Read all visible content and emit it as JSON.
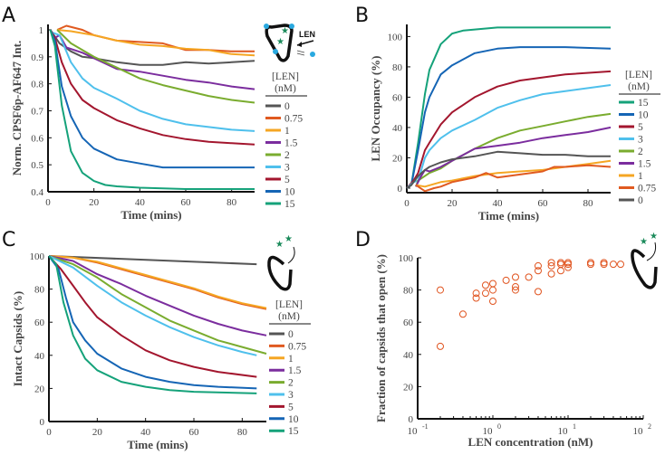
{
  "colors": {
    "0": "#555555",
    "0.75": "#e05a20",
    "1": "#f5a623",
    "1.5": "#7b2d9e",
    "2": "#7aac2f",
    "3": "#4fc0ec",
    "5": "#a3162e",
    "10": "#1565b5",
    "15": "#15a27a",
    "markers": "#e0531e",
    "cartoon_star": "#1a8a5a",
    "cartoon_dot": "#29a9e0"
  },
  "cartoon": {
    "len_label": "LEN"
  },
  "chart_data": [
    {
      "panel": "A",
      "type": "line",
      "xlabel": "Time (mins)",
      "ylabel": "Norm. CPSF6p-AF647 Int.",
      "xlim": [
        0,
        90
      ],
      "ylim": [
        0.4,
        1.02
      ],
      "xticks": [
        0,
        20,
        40,
        60,
        80
      ],
      "yticks": [
        0.4,
        0.5,
        0.6,
        0.7,
        0.8,
        0.9,
        1
      ],
      "ytick_labels": [
        "0.4",
        "0.5",
        "0.6",
        "0.7",
        "0.8",
        "0.9",
        "1"
      ],
      "legend": {
        "title": "[LEN]",
        "unit": "(nM)",
        "position": "right",
        "order": [
          "0",
          "0.75",
          "1",
          "1.5",
          "2",
          "3",
          "5",
          "10",
          "15"
        ]
      },
      "series": [
        {
          "name": "0",
          "x": [
            1,
            5,
            10,
            15,
            20,
            30,
            40,
            50,
            60,
            70,
            80,
            90
          ],
          "y": [
            1,
            0.95,
            0.92,
            0.9,
            0.895,
            0.88,
            0.87,
            0.87,
            0.88,
            0.875,
            0.88,
            0.885
          ]
        },
        {
          "name": "0.75",
          "x": [
            4,
            8,
            15,
            20,
            30,
            40,
            50,
            60,
            70,
            80,
            90
          ],
          "y": [
            1,
            1.015,
            1,
            0.98,
            0.96,
            0.955,
            0.95,
            0.925,
            0.925,
            0.92,
            0.92
          ]
        },
        {
          "name": "1",
          "x": [
            4,
            10,
            20,
            30,
            40,
            50,
            60,
            70,
            80,
            90
          ],
          "y": [
            1,
            0.995,
            0.98,
            0.96,
            0.945,
            0.94,
            0.93,
            0.925,
            0.91,
            0.905
          ]
        },
        {
          "name": "1.5",
          "x": [
            3,
            5,
            8,
            15,
            20,
            30,
            40,
            50,
            60,
            70,
            80,
            90
          ],
          "y": [
            0.97,
            0.98,
            0.935,
            0.915,
            0.895,
            0.855,
            0.845,
            0.83,
            0.815,
            0.805,
            0.79,
            0.78
          ]
        },
        {
          "name": "2",
          "x": [
            4,
            10,
            20,
            30,
            40,
            50,
            60,
            70,
            80,
            90
          ],
          "y": [
            1,
            0.95,
            0.9,
            0.86,
            0.82,
            0.795,
            0.775,
            0.755,
            0.74,
            0.73
          ]
        },
        {
          "name": "3",
          "x": [
            2,
            5,
            10,
            15,
            20,
            30,
            40,
            50,
            60,
            70,
            80,
            90
          ],
          "y": [
            0.99,
            0.98,
            0.88,
            0.82,
            0.785,
            0.745,
            0.7,
            0.67,
            0.65,
            0.64,
            0.63,
            0.625
          ]
        },
        {
          "name": "5",
          "x": [
            1,
            3,
            6,
            10,
            15,
            20,
            30,
            40,
            50,
            60,
            70,
            80,
            90
          ],
          "y": [
            1,
            0.97,
            0.88,
            0.8,
            0.74,
            0.71,
            0.665,
            0.635,
            0.61,
            0.595,
            0.585,
            0.58,
            0.575
          ]
        },
        {
          "name": "10",
          "x": [
            1,
            3,
            6,
            10,
            15,
            20,
            30,
            40,
            50,
            60,
            70,
            80,
            90
          ],
          "y": [
            1,
            0.96,
            0.79,
            0.68,
            0.6,
            0.56,
            0.52,
            0.505,
            0.49,
            0.49,
            0.49,
            0.49,
            0.49
          ]
        },
        {
          "name": "15",
          "x": [
            1,
            3,
            6,
            10,
            15,
            20,
            25,
            30,
            40,
            60,
            90
          ],
          "y": [
            1,
            0.94,
            0.72,
            0.55,
            0.47,
            0.44,
            0.425,
            0.42,
            0.415,
            0.41,
            0.41
          ]
        }
      ]
    },
    {
      "panel": "B",
      "type": "line",
      "xlabel": "Time (mins)",
      "ylabel": "LEN Occupancy (%)",
      "xlim": [
        0,
        90
      ],
      "ylim": [
        -3,
        108
      ],
      "xticks": [
        0,
        20,
        40,
        60,
        80
      ],
      "yticks": [
        0,
        20,
        40,
        60,
        80,
        100
      ],
      "ytick_labels": [
        "0",
        "20",
        "40",
        "60",
        "80",
        "100"
      ],
      "legend": {
        "title": "[LEN]",
        "unit": "(nM)",
        "position": "right",
        "order": [
          "15",
          "10",
          "5",
          "3",
          "2",
          "1.5",
          "1",
          "0.75",
          "0"
        ]
      },
      "series": [
        {
          "name": "15",
          "x": [
            0,
            2,
            5,
            8,
            10,
            15,
            20,
            25,
            40,
            60,
            90
          ],
          "y": [
            0,
            2,
            30,
            62,
            78,
            95,
            102,
            104,
            106,
            106,
            106
          ]
        },
        {
          "name": "10",
          "x": [
            0,
            2,
            5,
            8,
            10,
            15,
            20,
            30,
            40,
            50,
            70,
            90
          ],
          "y": [
            0,
            2,
            25,
            50,
            60,
            75,
            81,
            89,
            92,
            93,
            93,
            92
          ]
        },
        {
          "name": "5",
          "x": [
            0,
            3,
            5,
            8,
            10,
            15,
            20,
            30,
            40,
            50,
            60,
            70,
            90
          ],
          "y": [
            0,
            5,
            10,
            25,
            30,
            42,
            50,
            60,
            67,
            71,
            73,
            75,
            77
          ]
        },
        {
          "name": "3",
          "x": [
            0,
            3,
            5,
            8,
            10,
            15,
            20,
            30,
            40,
            50,
            60,
            70,
            80,
            90
          ],
          "y": [
            0,
            4,
            5,
            20,
            25,
            33,
            38,
            45,
            53,
            58,
            62,
            64,
            66,
            68
          ]
        },
        {
          "name": "2",
          "x": [
            4,
            5,
            8,
            10,
            15,
            20,
            30,
            40,
            50,
            60,
            70,
            80,
            90
          ],
          "y": [
            1,
            5,
            8,
            10,
            13,
            18,
            26,
            33,
            38,
            41,
            44,
            47,
            49
          ]
        },
        {
          "name": "1.5",
          "x": [
            4,
            6,
            8,
            10,
            15,
            20,
            30,
            40,
            50,
            60,
            70,
            80,
            90
          ],
          "y": [
            1,
            7,
            12,
            11,
            14,
            18,
            26,
            28,
            30,
            33,
            35,
            37,
            40
          ]
        },
        {
          "name": "1",
          "x": [
            4,
            8,
            15,
            20,
            30,
            40,
            50,
            60,
            70,
            80,
            90
          ],
          "y": [
            2,
            1,
            4,
            5,
            8,
            10,
            11,
            12,
            14,
            16,
            18
          ]
        },
        {
          "name": "0.75",
          "x": [
            4,
            8,
            12,
            15,
            20,
            30,
            35,
            40,
            50,
            60,
            65,
            70,
            80,
            90
          ],
          "y": [
            2,
            -2,
            0,
            1,
            4,
            7,
            10,
            7,
            9,
            11,
            14,
            14,
            15,
            14
          ]
        },
        {
          "name": "0",
          "x": [
            0,
            2,
            5,
            8,
            10,
            15,
            20,
            30,
            40,
            50,
            60,
            70,
            80,
            90
          ],
          "y": [
            0,
            2,
            8,
            12,
            14,
            17,
            19,
            21,
            24,
            23,
            22,
            22,
            21,
            21
          ]
        }
      ]
    },
    {
      "panel": "C",
      "type": "line",
      "xlabel": "Time (mins)",
      "ylabel": "Intact Capsids (%)",
      "xlim": [
        0,
        90
      ],
      "ylim": [
        0,
        100
      ],
      "xticks": [
        0,
        20,
        40,
        60,
        80
      ],
      "yticks": [
        0,
        20,
        40,
        60,
        80,
        100
      ],
      "ytick_labels": [
        "0",
        "20",
        "40",
        "60",
        "80",
        "100"
      ],
      "legend": {
        "title": "[LEN]",
        "unit": "(nM)",
        "position": "right",
        "order": [
          "0",
          "0.75",
          "1",
          "1.5",
          "2",
          "3",
          "5",
          "10",
          "15"
        ]
      },
      "series": [
        {
          "name": "0",
          "x": [
            0,
            86
          ],
          "y": [
            100,
            95
          ]
        },
        {
          "name": "0.75",
          "x": [
            0,
            10,
            20,
            30,
            40,
            50,
            60,
            70,
            80,
            90
          ],
          "y": [
            100,
            99,
            96,
            92,
            88,
            84,
            80,
            75,
            71,
            68
          ]
        },
        {
          "name": "1",
          "x": [
            0,
            10,
            20,
            30,
            40,
            50,
            60,
            70,
            80,
            90
          ],
          "y": [
            100,
            99,
            96.5,
            92.5,
            88.5,
            84.5,
            80.5,
            75.5,
            71.5,
            68.5
          ]
        },
        {
          "name": "1.5",
          "x": [
            0,
            10,
            20,
            30,
            40,
            50,
            60,
            70,
            80,
            90
          ],
          "y": [
            100,
            97,
            89,
            83,
            76,
            70,
            64,
            59,
            55,
            52
          ]
        },
        {
          "name": "2",
          "x": [
            0,
            10,
            20,
            30,
            40,
            50,
            60,
            70,
            80,
            90
          ],
          "y": [
            100,
            95,
            87,
            77,
            69,
            61,
            55,
            49,
            45,
            41
          ]
        },
        {
          "name": "3",
          "x": [
            0,
            10,
            20,
            30,
            40,
            50,
            60,
            70,
            80,
            86
          ],
          "y": [
            100,
            93,
            82,
            72,
            64,
            57,
            51,
            46,
            42,
            40
          ]
        },
        {
          "name": "5",
          "x": [
            0,
            5,
            10,
            15,
            20,
            30,
            40,
            50,
            60,
            70,
            86
          ],
          "y": [
            100,
            92,
            82,
            72,
            63,
            52,
            43,
            37,
            33,
            30,
            27
          ]
        },
        {
          "name": "10",
          "x": [
            0,
            4,
            7,
            10,
            15,
            20,
            30,
            40,
            50,
            60,
            70,
            86
          ],
          "y": [
            100,
            92,
            75,
            60,
            49,
            41,
            32,
            27,
            24,
            22,
            21,
            20
          ]
        },
        {
          "name": "15",
          "x": [
            0,
            3,
            6,
            10,
            15,
            20,
            30,
            40,
            50,
            60,
            86
          ],
          "y": [
            100,
            95,
            72,
            52,
            38,
            31,
            24,
            21,
            19,
            18,
            17
          ]
        }
      ]
    },
    {
      "panel": "D",
      "type": "scatter",
      "xlabel": "LEN concentration (nM)",
      "ylabel": "Fraction of capsids that open (%)",
      "xscale": "log",
      "xlim": [
        0.1,
        100
      ],
      "ylim": [
        0,
        100
      ],
      "xticks": [
        0.1,
        1,
        10,
        100
      ],
      "xtick_labels": [
        "10",
        "10",
        "10",
        "10"
      ],
      "xtick_exponents": [
        "-1",
        "0",
        "1",
        "2"
      ],
      "yticks": [
        0,
        20,
        40,
        60,
        80,
        100
      ],
      "ytick_labels": [
        "0",
        "20",
        "40",
        "60",
        "80",
        "100"
      ],
      "marker": "open-circle",
      "points": {
        "x": [
          0.2,
          0.2,
          0.4,
          0.6,
          0.6,
          0.8,
          0.8,
          1,
          1,
          1,
          1.5,
          2,
          2,
          2,
          3,
          4,
          4,
          4,
          6,
          6,
          6,
          8,
          8,
          8,
          10,
          10,
          10,
          20,
          20,
          30,
          30,
          40,
          50
        ],
        "y": [
          80,
          45,
          65,
          78,
          75,
          83,
          78,
          84,
          80,
          73,
          86,
          88,
          82,
          80,
          88,
          95,
          92,
          79,
          97,
          95,
          90,
          97,
          96,
          92,
          97,
          96,
          94,
          97,
          96,
          97,
          96,
          96,
          96
        ]
      }
    }
  ]
}
